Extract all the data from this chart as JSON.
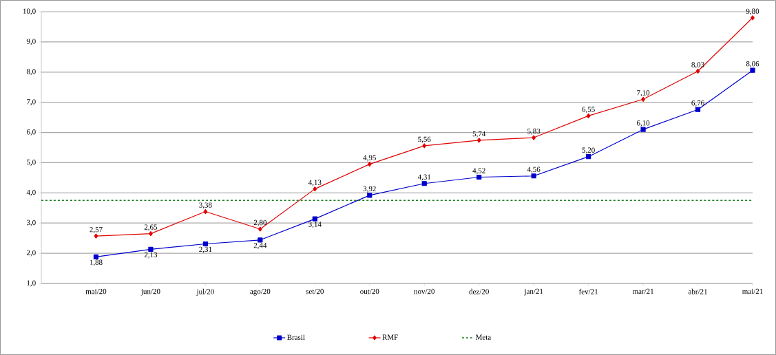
{
  "chart_data": {
    "type": "line",
    "categories": [
      "mai/20",
      "jun/20",
      "jul/20",
      "ago/20",
      "set/20",
      "out/20",
      "nov/20",
      "dez/20",
      "jan/21",
      "fev/21",
      "mar/21",
      "abr/21",
      "mai/21"
    ],
    "series": [
      {
        "name": "Brasil",
        "color": "#0000cc",
        "marker": "square",
        "values": [
          1.88,
          2.13,
          2.31,
          2.44,
          3.14,
          3.92,
          4.31,
          4.52,
          4.56,
          5.2,
          6.1,
          6.76,
          8.06
        ],
        "value_labels": [
          "1,88",
          "2,13",
          "2,31",
          "2,44",
          "3,14",
          "3,92",
          "4,31",
          "4,52",
          "4,56",
          "5,20",
          "6,10",
          "6,76",
          "8,06"
        ]
      },
      {
        "name": "RMF",
        "color": "#e00000",
        "marker": "diamond",
        "values": [
          2.57,
          2.65,
          3.38,
          2.8,
          4.13,
          4.95,
          5.56,
          5.74,
          5.83,
          6.55,
          7.1,
          8.03,
          9.8
        ],
        "value_labels": [
          "2,57",
          "2,65",
          "3,38",
          "2,80",
          "4,13",
          "4,95",
          "5,56",
          "5,74",
          "5,83",
          "6,55",
          "7,10",
          "8,03",
          "9,80"
        ]
      }
    ],
    "ylim": [
      1,
      10
    ],
    "yticks": [
      {
        "value": 1,
        "label": "1,0"
      },
      {
        "value": 2,
        "label": "2,0"
      },
      {
        "value": 3,
        "label": "3,0"
      },
      {
        "value": 4,
        "label": "4,0"
      },
      {
        "value": 5,
        "label": "5,0"
      },
      {
        "value": 6,
        "label": "6,0"
      },
      {
        "value": 7,
        "label": "7,0"
      },
      {
        "value": 8,
        "label": "8,0"
      },
      {
        "value": 9,
        "label": "9,0"
      },
      {
        "value": 10,
        "label": "10,0"
      }
    ],
    "grid": "y",
    "legend": "bottom",
    "ref_lines": [
      {
        "axis": "y",
        "value": 3.75,
        "label": "Meta",
        "color": "#1a7a1a",
        "line_style": "dashed"
      }
    ]
  }
}
